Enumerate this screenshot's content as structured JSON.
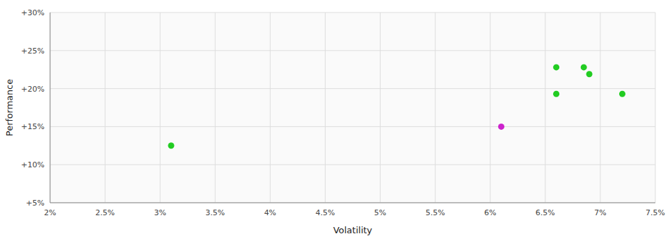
{
  "chart_data": {
    "type": "scatter",
    "xlabel": "Volatility",
    "ylabel": "Performance",
    "x": [
      0.031,
      0.061,
      0.066,
      0.0685,
      0.069,
      0.066,
      0.072
    ],
    "values": [
      0.125,
      0.15,
      0.228,
      0.228,
      0.219,
      0.193,
      0.193
    ],
    "colors": [
      "#22cc22",
      "#cc22cc",
      "#22cc22",
      "#22cc22",
      "#22cc22",
      "#22cc22",
      "#22cc22"
    ],
    "xlim": [
      0.02,
      0.075
    ],
    "ylim": [
      0.05,
      0.3
    ],
    "xticks": [
      {
        "value": 0.02,
        "label": "2%"
      },
      {
        "value": 0.025,
        "label": "2.5%"
      },
      {
        "value": 0.03,
        "label": "3%"
      },
      {
        "value": 0.035,
        "label": "3.5%"
      },
      {
        "value": 0.04,
        "label": "4%"
      },
      {
        "value": 0.045,
        "label": "4.5%"
      },
      {
        "value": 0.05,
        "label": "5%"
      },
      {
        "value": 0.055,
        "label": "5.5%"
      },
      {
        "value": 0.06,
        "label": "6%"
      },
      {
        "value": 0.065,
        "label": "6.5%"
      },
      {
        "value": 0.07,
        "label": "7%"
      },
      {
        "value": 0.075,
        "label": "7.5%"
      }
    ],
    "yticks": [
      {
        "value": 0.05,
        "label": "+5%"
      },
      {
        "value": 0.1,
        "label": "+10%"
      },
      {
        "value": 0.15,
        "label": "+15%"
      },
      {
        "value": 0.2,
        "label": "+20%"
      },
      {
        "value": 0.25,
        "label": "+25%"
      },
      {
        "value": 0.3,
        "label": "+30%"
      }
    ],
    "grid": true
  }
}
